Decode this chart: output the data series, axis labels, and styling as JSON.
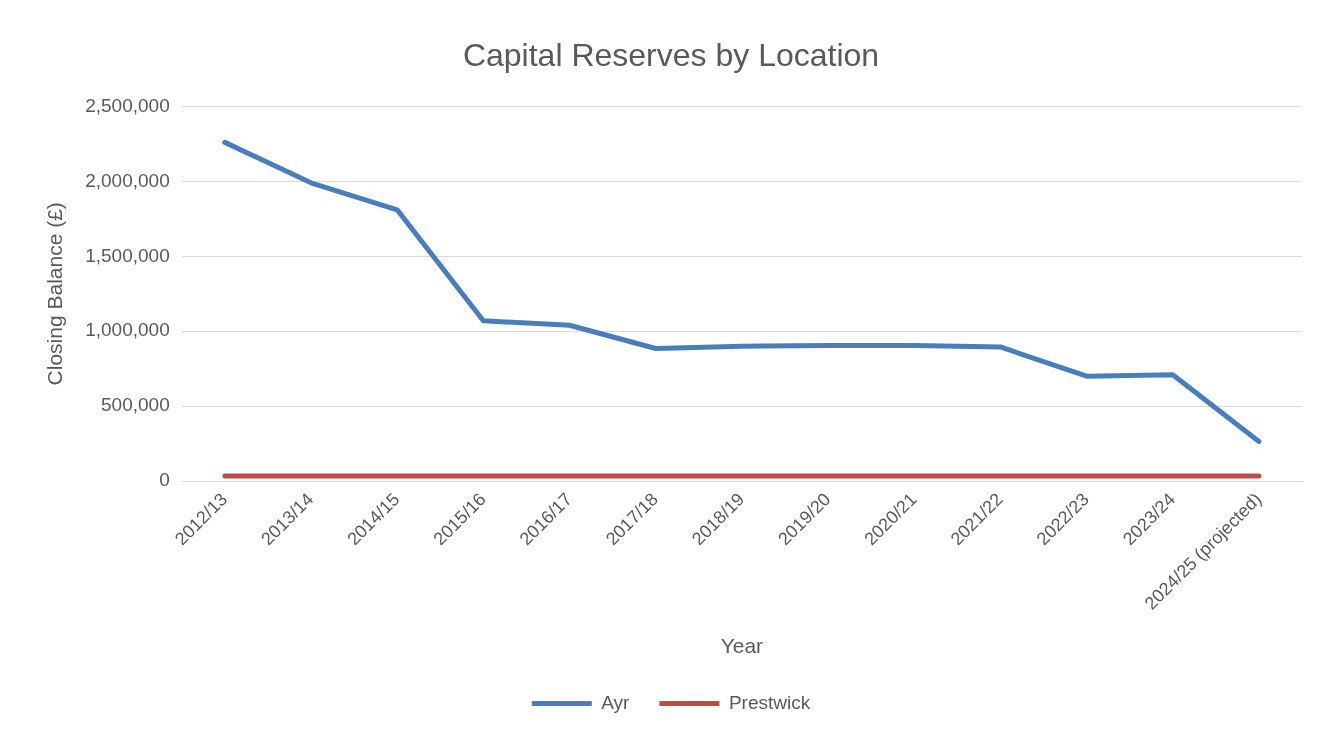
{
  "chart_data": {
    "type": "line",
    "title": "Capital Reserves by Location",
    "xlabel": "Year",
    "ylabel": "Closing Balance (£)",
    "categories": [
      "2012/13",
      "2013/14",
      "2014/15",
      "2015/16",
      "2016/17",
      "2017/18",
      "2018/19",
      "2019/20",
      "2020/21",
      "2021/22",
      "2022/23",
      "2023/24",
      "2024/25 (projected)"
    ],
    "series": [
      {
        "name": "Ayr",
        "color": "#4a7ebb",
        "values": [
          2260000,
          1990000,
          1810000,
          1070000,
          1040000,
          885000,
          900000,
          905000,
          905000,
          895000,
          700000,
          710000,
          265000
        ]
      },
      {
        "name": "Prestwick",
        "color": "#be4b48",
        "values": [
          35000,
          35000,
          35000,
          35000,
          35000,
          35000,
          35000,
          35000,
          35000,
          35000,
          35000,
          35000,
          35000
        ]
      }
    ],
    "ylim": [
      0,
      2500000
    ],
    "yticks": [
      0,
      {
        "value": 500000,
        "label": "500,000"
      },
      {
        "value": 1000000,
        "label": "1,000,000"
      },
      {
        "value": 1500000,
        "label": "1,500,000"
      },
      {
        "value": 2000000,
        "label": "2,000,000"
      },
      {
        "value": 2500000,
        "label": "2,500,000"
      }
    ],
    "grid": "y",
    "legend": "bottom",
    "marker": "none",
    "line_style": "solid"
  }
}
